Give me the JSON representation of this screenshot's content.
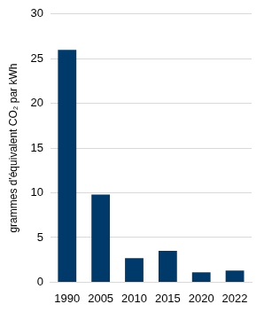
{
  "chart_data": {
    "type": "bar",
    "y_label": "grammes d'équivalent CO₂ par kWh",
    "categories": [
      "1990",
      "2005",
      "2010",
      "2015",
      "2020",
      "2022"
    ],
    "values": [
      26,
      9.8,
      2.7,
      3.5,
      1.1,
      1.3
    ],
    "color": "#003a6b",
    "ylim": [
      0,
      30
    ],
    "yticks": [
      0,
      5,
      10,
      15,
      20,
      25,
      30
    ],
    "grid": true
  }
}
